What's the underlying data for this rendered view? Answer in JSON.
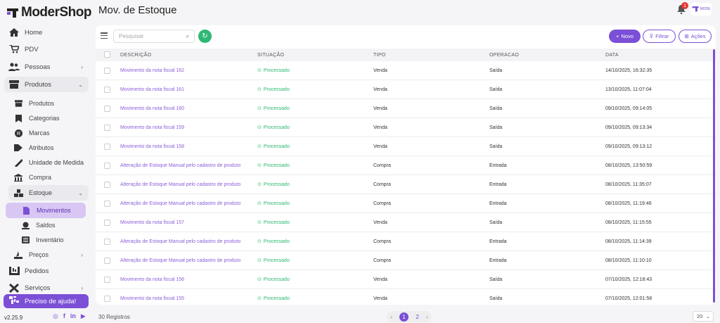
{
  "app": {
    "logo_text": "ModerShop",
    "version": "v2.25.9"
  },
  "header": {
    "title": "Mov. de Estoque",
    "notification_count": "1",
    "avatar_text": "MODE"
  },
  "sidebar": {
    "items": [
      {
        "label": "Home",
        "icon": "home-icon"
      },
      {
        "label": "PDV",
        "icon": "cart-icon"
      },
      {
        "label": "Pessoas",
        "icon": "users-icon"
      },
      {
        "label": "Produtos",
        "icon": "box-icon"
      },
      {
        "label": "Produtos",
        "icon": "box-icon"
      },
      {
        "label": "Categorias",
        "icon": "bookmark-icon"
      },
      {
        "label": "Marcas",
        "icon": "registered-icon"
      },
      {
        "label": "Atributos",
        "icon": "tag-icon"
      },
      {
        "label": "Unidade de Medida",
        "icon": "ruler-icon"
      },
      {
        "label": "Compra",
        "icon": "store-icon"
      },
      {
        "label": "Estoque",
        "icon": "warehouse-icon"
      },
      {
        "label": "Movimentos",
        "icon": "file-icon"
      },
      {
        "label": "Saldos",
        "icon": "balance-icon"
      },
      {
        "label": "Inventário",
        "icon": "list-icon"
      },
      {
        "label": "Preços",
        "icon": "price-icon"
      },
      {
        "label": "Pedidos",
        "icon": "orders-icon"
      },
      {
        "label": "Serviços",
        "icon": "tools-icon"
      }
    ],
    "help_label": "Preciso de ajuda!"
  },
  "toolbar": {
    "search_placeholder": "Pesquisar",
    "novo_label": "Novo",
    "filtrar_label": "Filtrar",
    "acoes_label": "Ações"
  },
  "table": {
    "columns": [
      "DESCRIÇÃO",
      "SITUAÇÃO",
      "TIPO",
      "OPERACAO",
      "DATA"
    ],
    "rows": [
      {
        "desc": "Movimento da nota fiscal 162",
        "sit": "Processado",
        "tipo": "Venda",
        "op": "Saída",
        "data": "14/10/2025, 16:32:35"
      },
      {
        "desc": "Movimento da nota fiscal 161",
        "sit": "Processado",
        "tipo": "Venda",
        "op": "Saída",
        "data": "13/10/2025, 11:07:04"
      },
      {
        "desc": "Movimento da nota fiscal 160",
        "sit": "Processado",
        "tipo": "Venda",
        "op": "Saída",
        "data": "09/10/2025, 09:14:05"
      },
      {
        "desc": "Movimento da nota fiscal 159",
        "sit": "Processado",
        "tipo": "Venda",
        "op": "Saída",
        "data": "09/10/2025, 09:13:34"
      },
      {
        "desc": "Movimento da nota fiscal 158",
        "sit": "Processado",
        "tipo": "Venda",
        "op": "Saída",
        "data": "09/10/2025, 09:13:12"
      },
      {
        "desc": "Alteração de Estoque Manual pelo cadastro de produto",
        "sit": "Processado",
        "tipo": "Compra",
        "op": "Entrada",
        "data": "08/10/2025, 13:50:59"
      },
      {
        "desc": "Alteração de Estoque Manual pelo cadastro de produto",
        "sit": "Processado",
        "tipo": "Compra",
        "op": "Entrada",
        "data": "08/10/2025, 11:35:07"
      },
      {
        "desc": "Alteração de Estoque Manual pelo cadastro de produto",
        "sit": "Processado",
        "tipo": "Compra",
        "op": "Entrada",
        "data": "08/10/2025, 11:19:46"
      },
      {
        "desc": "Movimento da nota fiscal 157",
        "sit": "Processado",
        "tipo": "Venda",
        "op": "Saída",
        "data": "08/10/2025, 11:15:55"
      },
      {
        "desc": "Alteração de Estoque Manual pelo cadastro de produto",
        "sit": "Processado",
        "tipo": "Compra",
        "op": "Entrada",
        "data": "08/10/2025, 11:14:39"
      },
      {
        "desc": "Alteração de Estoque Manual pelo cadastro de produto",
        "sit": "Processado",
        "tipo": "Compra",
        "op": "Entrada",
        "data": "08/10/2025, 11:10:10"
      },
      {
        "desc": "Movimento da nota fiscal 156",
        "sit": "Processado",
        "tipo": "Venda",
        "op": "Saída",
        "data": "07/10/2025, 12:18:43"
      },
      {
        "desc": "Movimento da nota fiscal 155",
        "sit": "Processado",
        "tipo": "Venda",
        "op": "Saída",
        "data": "07/10/2025, 12:01:58"
      }
    ]
  },
  "footer": {
    "registros": "30 Registros",
    "page_current": "1",
    "page_next": "2",
    "per_page": "20"
  },
  "colors": {
    "accent": "#7b4fd6",
    "success": "#2eb872"
  }
}
